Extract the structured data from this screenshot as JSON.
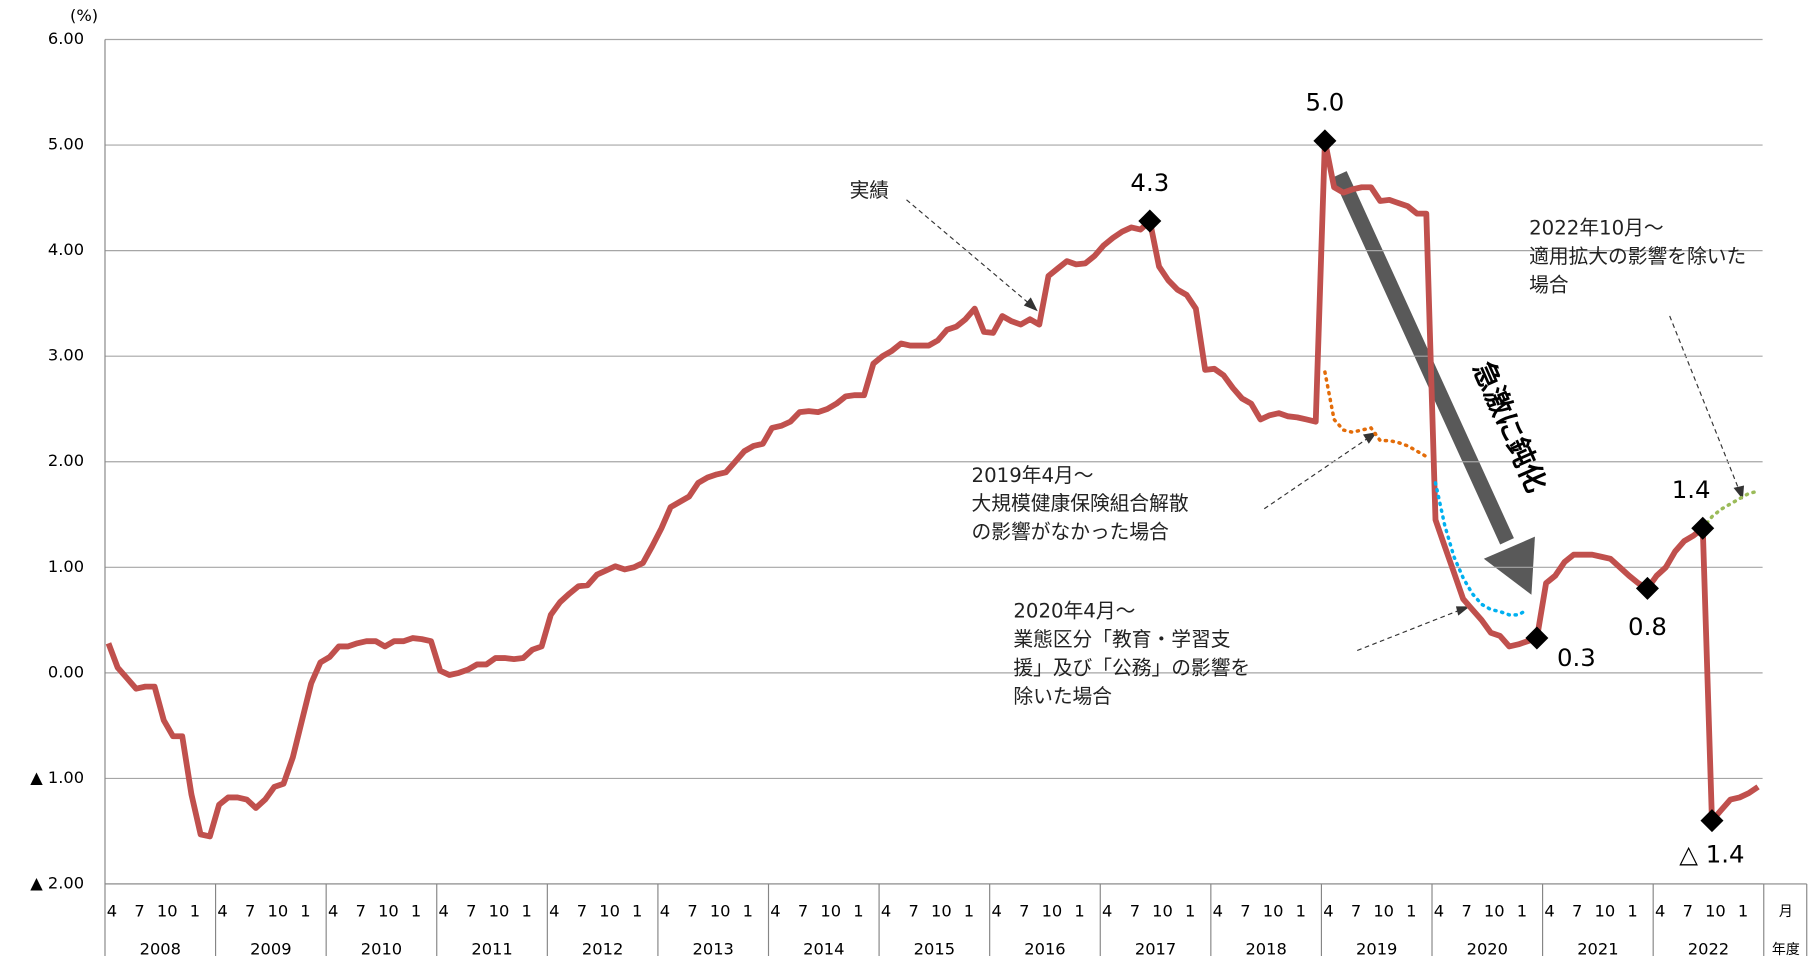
{
  "chart_data": {
    "type": "line",
    "unit_label": "(%)",
    "categories": [
      "4",
      null,
      null,
      "7",
      null,
      null,
      "10",
      null,
      null,
      "1",
      null,
      null,
      "4",
      null,
      null,
      "7",
      null,
      null,
      "10",
      null,
      null,
      "1",
      null,
      null,
      "4",
      null,
      null,
      "7",
      null,
      null,
      "10",
      null,
      null,
      "1",
      null,
      null,
      "4",
      null,
      null,
      "7",
      null,
      null,
      "10",
      null,
      null,
      "1",
      null,
      null,
      "4",
      null,
      null,
      "7",
      null,
      null,
      "10",
      null,
      null,
      "1",
      null,
      null,
      "4",
      null,
      null,
      "7",
      null,
      null,
      "10",
      null,
      null,
      "1",
      null,
      null,
      "4",
      null,
      null,
      "7",
      null,
      null,
      "10",
      null,
      null,
      "1",
      null,
      null,
      "4",
      null,
      null,
      "7",
      null,
      null,
      "10",
      null,
      null,
      "1",
      null,
      null,
      "4",
      null,
      null,
      "7",
      null,
      null,
      "10",
      null,
      null,
      "1",
      null,
      null,
      "4",
      null,
      null,
      "7",
      null,
      null,
      "10",
      null,
      null,
      "1",
      null,
      null,
      "4",
      null,
      null,
      "7",
      null,
      null,
      "10",
      null,
      null,
      "1",
      null,
      null,
      "4",
      null,
      null,
      "7",
      null,
      null,
      "10",
      null,
      null,
      "1",
      null,
      null,
      "4",
      null,
      null,
      "7",
      null,
      null,
      "10",
      null,
      null,
      "1",
      null,
      null,
      "4",
      null,
      null,
      "7",
      null,
      null,
      "10",
      null,
      null,
      "1",
      null,
      null,
      "4",
      null,
      null,
      "7",
      null,
      null,
      "10",
      null,
      null,
      "1",
      null,
      null
    ],
    "years": [
      "2008",
      "2009",
      "2010",
      "2011",
      "2012",
      "2013",
      "2014",
      "2015",
      "2016",
      "2017",
      "2018",
      "2019",
      "2020",
      "2021",
      "2022"
    ],
    "month_axis_label": "月",
    "year_axis_label": "年度",
    "ylim": [
      -2,
      6
    ],
    "yticks": [
      {
        "value": 6,
        "label": "6.00"
      },
      {
        "value": 5,
        "label": "5.00"
      },
      {
        "value": 4,
        "label": "4.00"
      },
      {
        "value": 3,
        "label": "3.00"
      },
      {
        "value": 2,
        "label": "2.00"
      },
      {
        "value": 1,
        "label": "1.00"
      },
      {
        "value": 0,
        "label": "0.00"
      },
      {
        "value": -1,
        "label": "▲ 1.00"
      },
      {
        "value": -2,
        "label": "▲ 2.00"
      }
    ],
    "grid": true,
    "series": [
      {
        "name": "実績",
        "color": "#c0504d",
        "dashed": false,
        "values": [
          0.28,
          0.05,
          -0.05,
          -0.15,
          -0.13,
          -0.13,
          -0.45,
          -0.6,
          -0.6,
          -1.15,
          -1.53,
          -1.55,
          -1.25,
          -1.18,
          -1.18,
          -1.2,
          -1.28,
          -1.2,
          -1.08,
          -1.05,
          -0.8,
          -0.45,
          -0.1,
          0.1,
          0.15,
          0.25,
          0.25,
          0.28,
          0.3,
          0.3,
          0.25,
          0.3,
          0.3,
          0.33,
          0.32,
          0.3,
          0.02,
          -0.02,
          0,
          0.03,
          0.08,
          0.08,
          0.14,
          0.14,
          0.13,
          0.14,
          0.22,
          0.25,
          0.55,
          0.67,
          0.75,
          0.82,
          0.83,
          0.93,
          0.97,
          1.01,
          0.98,
          1.0,
          1.04,
          1.2,
          1.37,
          1.57,
          1.62,
          1.67,
          1.8,
          1.85,
          1.88,
          1.9,
          2.0,
          2.1,
          2.15,
          2.17,
          2.32,
          2.34,
          2.38,
          2.47,
          2.48,
          2.47,
          2.5,
          2.55,
          2.62,
          2.63,
          2.63,
          2.93,
          3.0,
          3.05,
          3.12,
          3.1,
          3.1,
          3.1,
          3.15,
          3.25,
          3.28,
          3.35,
          3.45,
          3.23,
          3.22,
          3.38,
          3.33,
          3.3,
          3.35,
          3.3,
          3.76,
          3.83,
          3.9,
          3.87,
          3.88,
          3.95,
          4.05,
          4.12,
          4.18,
          4.22,
          4.2,
          4.28,
          3.85,
          3.72,
          3.63,
          3.58,
          3.45,
          2.87,
          2.88,
          2.82,
          2.7,
          2.6,
          2.55,
          2.4,
          2.44,
          2.46,
          2.43,
          2.42,
          2.4,
          2.38,
          5.04,
          4.6,
          4.55,
          4.58,
          4.6,
          4.6,
          4.47,
          4.48,
          4.45,
          4.42,
          4.35,
          4.35,
          1.45,
          1.2,
          0.95,
          0.7,
          0.6,
          0.5,
          0.38,
          0.35,
          0.25,
          0.27,
          0.3,
          0.33,
          0.85,
          0.92,
          1.05,
          1.12,
          1.12,
          1.12,
          1.1,
          1.08,
          1.0,
          0.92,
          0.85,
          0.8,
          0.92,
          1.0,
          1.15,
          1.25,
          1.3,
          1.37,
          -1.4,
          -1.3,
          -1.2,
          -1.18,
          -1.14,
          -1.08
        ],
        "value_labels": [
          null,
          null,
          null,
          null,
          null,
          null,
          null,
          null,
          null,
          null,
          null,
          null,
          null,
          null,
          null,
          null,
          null,
          null,
          null,
          null,
          null,
          null,
          null,
          null,
          null,
          null,
          null,
          null,
          null,
          null,
          null,
          null,
          null,
          null,
          null,
          null,
          null,
          null,
          null,
          null,
          null,
          null,
          null,
          null,
          null,
          null,
          null,
          null,
          null,
          null,
          null,
          null,
          null,
          null,
          null,
          null,
          null,
          null,
          null,
          null,
          null,
          null,
          null,
          null,
          null,
          null,
          null,
          null,
          null,
          null,
          null,
          null,
          null,
          null,
          null,
          null,
          null,
          null,
          null,
          null,
          null,
          null,
          null,
          null,
          null,
          null,
          null,
          null,
          null,
          null,
          null,
          null,
          null,
          null,
          null,
          null,
          null,
          null,
          null,
          null,
          null,
          null,
          null,
          null,
          null,
          null,
          null,
          null,
          null,
          null,
          null,
          null,
          null,
          "4.3",
          null,
          null,
          null,
          null,
          null,
          null,
          null,
          null,
          null,
          null,
          null,
          null,
          null,
          null,
          null,
          null,
          null,
          null,
          "5.0",
          null,
          null,
          null,
          null,
          null,
          null,
          null,
          null,
          null,
          null,
          null,
          null,
          null,
          null,
          null,
          null,
          null,
          null,
          null,
          null,
          null,
          null,
          "0.3",
          null,
          null,
          null,
          null,
          null,
          null,
          null,
          null,
          null,
          null,
          null,
          "0.8",
          null,
          null,
          null,
          null,
          null,
          "1.4",
          "△ 1.4",
          null,
          null,
          null,
          null,
          null
        ]
      },
      {
        "name": "2019年4月～大規模健康保険組合解散の影響がなかった場合",
        "color": "#e36c09",
        "dashed": true,
        "values": [
          null,
          null,
          null,
          null,
          null,
          null,
          null,
          null,
          null,
          null,
          null,
          null,
          null,
          null,
          null,
          null,
          null,
          null,
          null,
          null,
          null,
          null,
          null,
          null,
          null,
          null,
          null,
          null,
          null,
          null,
          null,
          null,
          null,
          null,
          null,
          null,
          null,
          null,
          null,
          null,
          null,
          null,
          null,
          null,
          null,
          null,
          null,
          null,
          null,
          null,
          null,
          null,
          null,
          null,
          null,
          null,
          null,
          null,
          null,
          null,
          null,
          null,
          null,
          null,
          null,
          null,
          null,
          null,
          null,
          null,
          null,
          null,
          null,
          null,
          null,
          null,
          null,
          null,
          null,
          null,
          null,
          null,
          null,
          null,
          null,
          null,
          null,
          null,
          null,
          null,
          null,
          null,
          null,
          null,
          null,
          null,
          null,
          null,
          null,
          null,
          null,
          null,
          null,
          null,
          null,
          null,
          null,
          null,
          null,
          null,
          null,
          null,
          null,
          null,
          null,
          null,
          null,
          null,
          null,
          null,
          null,
          null,
          null,
          null,
          null,
          null,
          null,
          null,
          null,
          null,
          null,
          null,
          2.85,
          2.4,
          2.3,
          2.28,
          2.3,
          2.32,
          2.2,
          2.2,
          2.18,
          2.15,
          2.1,
          2.05,
          null,
          null,
          null,
          null,
          null,
          null,
          null,
          null,
          null,
          null,
          null,
          null,
          null,
          null,
          null,
          null,
          null,
          null,
          null,
          null,
          null,
          null,
          null,
          null,
          null,
          null,
          null,
          null,
          null,
          null,
          null,
          null,
          null,
          null,
          null,
          null
        ]
      },
      {
        "name": "2020年4月～業態区分「教育・学習支援」及び「公務」の影響を除いた場合",
        "color": "#00b0f0",
        "dashed": true,
        "values": [
          null,
          null,
          null,
          null,
          null,
          null,
          null,
          null,
          null,
          null,
          null,
          null,
          null,
          null,
          null,
          null,
          null,
          null,
          null,
          null,
          null,
          null,
          null,
          null,
          null,
          null,
          null,
          null,
          null,
          null,
          null,
          null,
          null,
          null,
          null,
          null,
          null,
          null,
          null,
          null,
          null,
          null,
          null,
          null,
          null,
          null,
          null,
          null,
          null,
          null,
          null,
          null,
          null,
          null,
          null,
          null,
          null,
          null,
          null,
          null,
          null,
          null,
          null,
          null,
          null,
          null,
          null,
          null,
          null,
          null,
          null,
          null,
          null,
          null,
          null,
          null,
          null,
          null,
          null,
          null,
          null,
          null,
          null,
          null,
          null,
          null,
          null,
          null,
          null,
          null,
          null,
          null,
          null,
          null,
          null,
          null,
          null,
          null,
          null,
          null,
          null,
          null,
          null,
          null,
          null,
          null,
          null,
          null,
          null,
          null,
          null,
          null,
          null,
          null,
          null,
          null,
          null,
          null,
          null,
          null,
          null,
          null,
          null,
          null,
          null,
          null,
          null,
          null,
          null,
          null,
          null,
          null,
          null,
          null,
          null,
          null,
          null,
          null,
          null,
          null,
          null,
          null,
          null,
          null,
          1.8,
          1.4,
          1.1,
          0.9,
          0.75,
          0.65,
          0.6,
          0.58,
          0.55,
          0.55,
          0.6,
          null,
          null,
          null,
          null,
          null,
          null,
          null,
          null,
          null,
          null,
          null,
          null,
          null,
          null,
          null,
          null,
          null,
          null,
          null,
          null,
          null,
          null,
          null,
          null,
          null
        ]
      },
      {
        "name": "2022年10月～適用拡大の影響を除いた場合",
        "color": "#9bbb59",
        "dashed": true,
        "values": [
          null,
          null,
          null,
          null,
          null,
          null,
          null,
          null,
          null,
          null,
          null,
          null,
          null,
          null,
          null,
          null,
          null,
          null,
          null,
          null,
          null,
          null,
          null,
          null,
          null,
          null,
          null,
          null,
          null,
          null,
          null,
          null,
          null,
          null,
          null,
          null,
          null,
          null,
          null,
          null,
          null,
          null,
          null,
          null,
          null,
          null,
          null,
          null,
          null,
          null,
          null,
          null,
          null,
          null,
          null,
          null,
          null,
          null,
          null,
          null,
          null,
          null,
          null,
          null,
          null,
          null,
          null,
          null,
          null,
          null,
          null,
          null,
          null,
          null,
          null,
          null,
          null,
          null,
          null,
          null,
          null,
          null,
          null,
          null,
          null,
          null,
          null,
          null,
          null,
          null,
          null,
          null,
          null,
          null,
          null,
          null,
          null,
          null,
          null,
          null,
          null,
          null,
          null,
          null,
          null,
          null,
          null,
          null,
          null,
          null,
          null,
          null,
          null,
          null,
          null,
          null,
          null,
          null,
          null,
          null,
          null,
          null,
          null,
          null,
          null,
          null,
          null,
          null,
          null,
          null,
          null,
          null,
          null,
          null,
          null,
          null,
          null,
          null,
          null,
          null,
          null,
          null,
          null,
          null,
          null,
          null,
          null,
          null,
          null,
          null,
          null,
          null,
          null,
          null,
          null,
          null,
          null,
          null,
          null,
          null,
          null,
          null,
          null,
          null,
          null,
          null,
          null,
          null,
          null,
          null,
          null,
          null,
          null,
          1.37,
          1.48,
          1.55,
          1.6,
          1.65,
          1.7,
          1.72
        ]
      }
    ],
    "annotations": [
      {
        "lines": [
          "実績"
        ]
      },
      {
        "lines": [
          "2019年4月～",
          "大規模健康保険組合解散",
          "の影響がなかった場合"
        ]
      },
      {
        "lines": [
          "2020年4月～",
          "業態区分「教育・学習支",
          "援」及び「公務」の影響を",
          "除いた場合"
        ]
      },
      {
        "lines": [
          "2022年10月～",
          "適用拡大の影響を除いた",
          "場合"
        ]
      }
    ],
    "arrow_label": "急激に鈍化"
  }
}
